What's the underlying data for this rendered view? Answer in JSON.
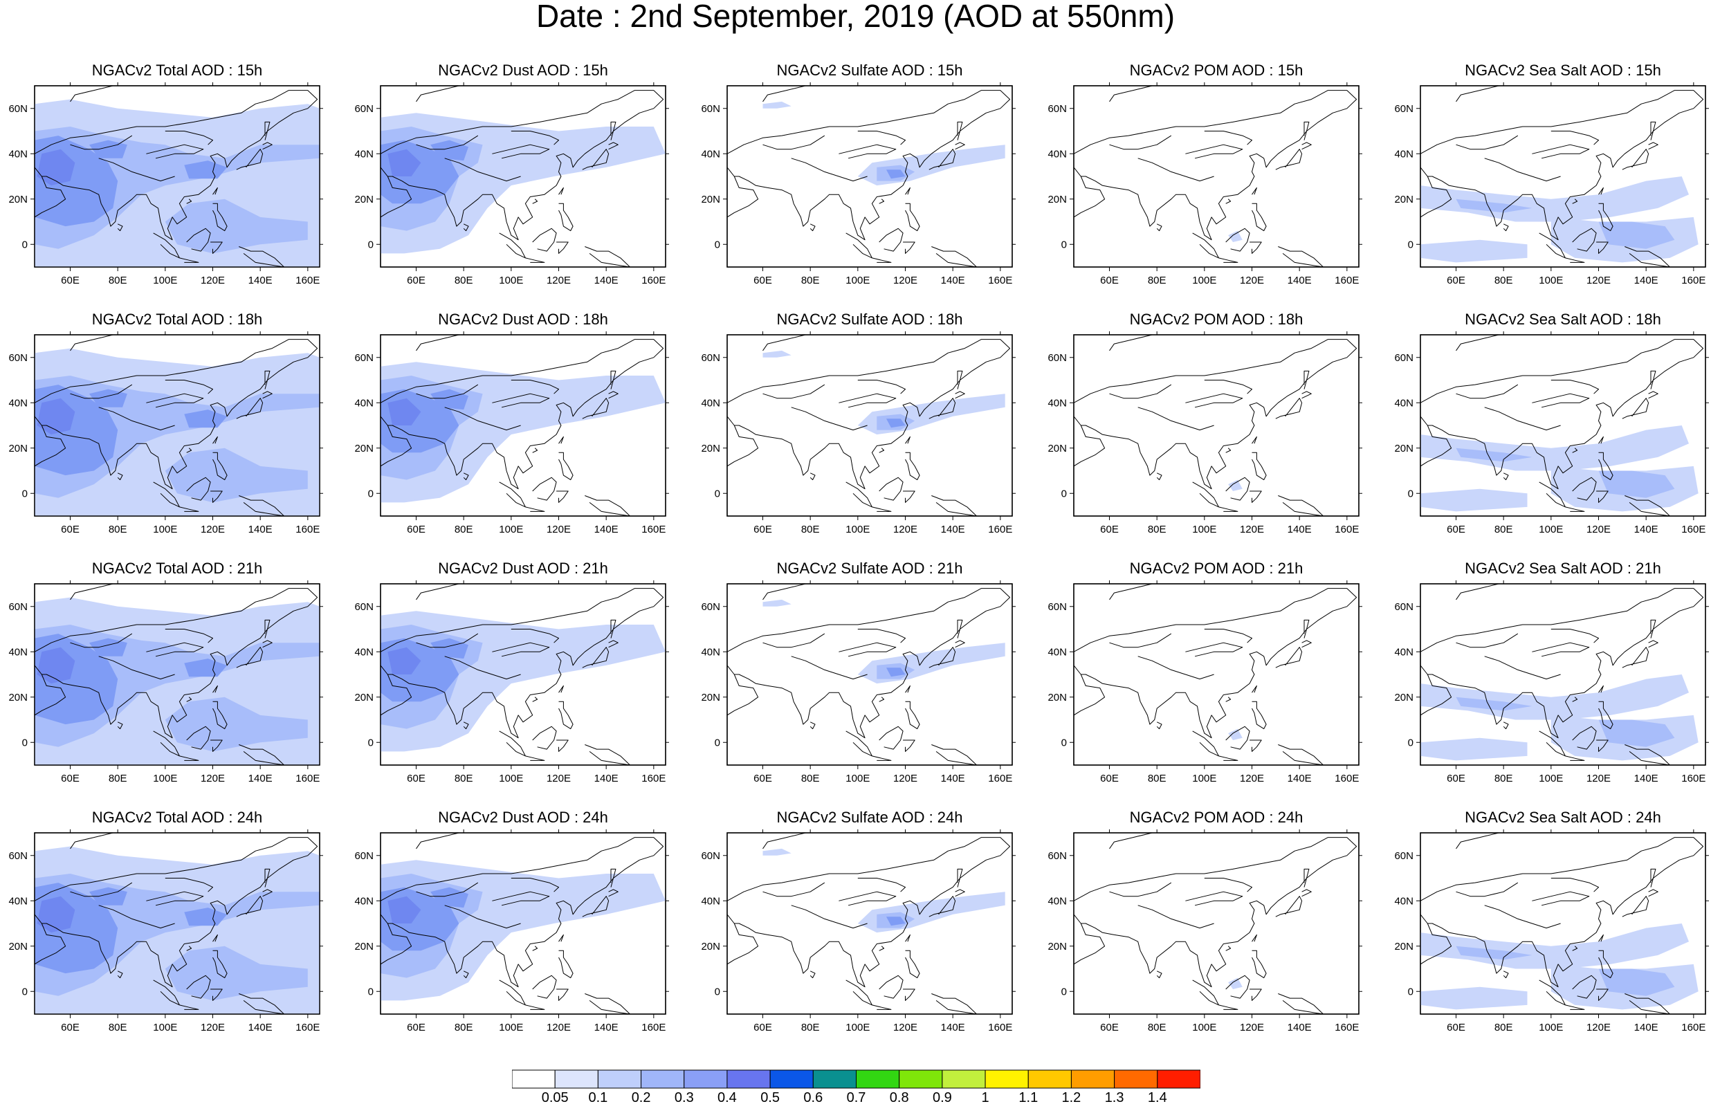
{
  "title": "Date : 2nd September, 2019 (AOD at 550nm)",
  "colors": {
    "low": "#c9d6fb",
    "mid": "#a8bdfa",
    "high": "#7f9cf5",
    "peak": "#6f87f0",
    "edge": "#000000"
  },
  "axes": {
    "lon_ticks": [
      "60E",
      "80E",
      "100E",
      "120E",
      "140E",
      "160E"
    ],
    "lat_ticks": [
      "60N",
      "40N",
      "20N",
      "0"
    ]
  },
  "legend": {
    "labels": [
      "0.05",
      "0.1",
      "0.2",
      "0.3",
      "0.4",
      "0.5",
      "0.6",
      "0.7",
      "0.8",
      "0.9",
      "1",
      "1.1",
      "1.2",
      "1.3",
      "1.4"
    ],
    "colors": [
      "#ffffff",
      "#dde5fd",
      "#bfcffb",
      "#a0b6f9",
      "#8a9ff6",
      "#6875ef",
      "#0b57e8",
      "#0a9090",
      "#32d612",
      "#7fe60a",
      "#c2ef3d",
      "#fff200",
      "#ffc800",
      "#ff9d00",
      "#ff6a00",
      "#ff1e00"
    ]
  },
  "panels": [
    {
      "title": "NGACv2 Total AOD : 15h",
      "type": "total"
    },
    {
      "title": "NGACv2 Dust AOD : 15h",
      "type": "dust"
    },
    {
      "title": "NGACv2 Sulfate AOD : 15h",
      "type": "sulfate"
    },
    {
      "title": "NGACv2 POM AOD : 15h",
      "type": "pom"
    },
    {
      "title": "NGACv2 Sea Salt AOD : 15h",
      "type": "seasalt"
    },
    {
      "title": "NGACv2 Total AOD : 18h",
      "type": "total"
    },
    {
      "title": "NGACv2 Dust AOD : 18h",
      "type": "dust"
    },
    {
      "title": "NGACv2 Sulfate AOD : 18h",
      "type": "sulfate"
    },
    {
      "title": "NGACv2 POM AOD : 18h",
      "type": "pom"
    },
    {
      "title": "NGACv2 Sea Salt AOD : 18h",
      "type": "seasalt"
    },
    {
      "title": "NGACv2 Total AOD : 21h",
      "type": "total"
    },
    {
      "title": "NGACv2 Dust AOD : 21h",
      "type": "dust"
    },
    {
      "title": "NGACv2 Sulfate AOD : 21h",
      "type": "sulfate"
    },
    {
      "title": "NGACv2 POM AOD : 21h",
      "type": "pom"
    },
    {
      "title": "NGACv2 Sea Salt AOD : 21h",
      "type": "seasalt"
    },
    {
      "title": "NGACv2 Total AOD : 24h",
      "type": "total"
    },
    {
      "title": "NGACv2 Dust AOD : 24h",
      "type": "dust"
    },
    {
      "title": "NGACv2 Sulfate AOD : 24h",
      "type": "sulfate"
    },
    {
      "title": "NGACv2 POM AOD : 24h",
      "type": "pom"
    },
    {
      "title": "NGACv2 Sea Salt  AOD : 24h",
      "type": "seasalt"
    }
  ]
}
